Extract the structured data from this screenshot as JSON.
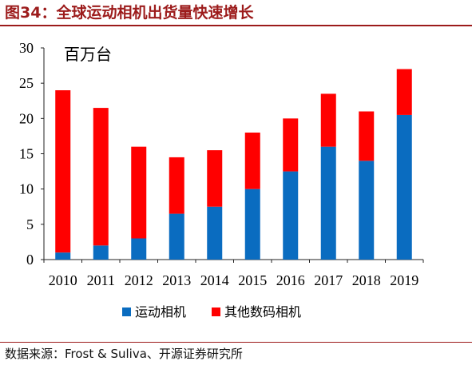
{
  "figure": {
    "title": "图34：全球运动相机出货量快速增长",
    "source": "数据来源：Frost & Suliva、开源证券研究所"
  },
  "colors": {
    "title": "#9c1b1b",
    "sports": "#0a6cc0",
    "other": "#ff0000",
    "axis": "#222222"
  },
  "chart_data": {
    "type": "bar",
    "stacked": true,
    "unit_label": "百万台",
    "categories": [
      "2010",
      "2011",
      "2012",
      "2013",
      "2014",
      "2015",
      "2016",
      "2017",
      "2018",
      "2019"
    ],
    "series": [
      {
        "name": "运动相机",
        "values": [
          1,
          2,
          3,
          6.5,
          7.5,
          10,
          12.5,
          16,
          14,
          20.5
        ]
      },
      {
        "name": "其他数码相机",
        "values": [
          23,
          19.5,
          13,
          8,
          8,
          8,
          7.5,
          7.5,
          7,
          6.5
        ]
      }
    ],
    "ylim": [
      0,
      30
    ],
    "yticks": [
      0,
      5,
      10,
      15,
      20,
      25,
      30
    ],
    "legend_position": "bottom",
    "grid": false
  }
}
